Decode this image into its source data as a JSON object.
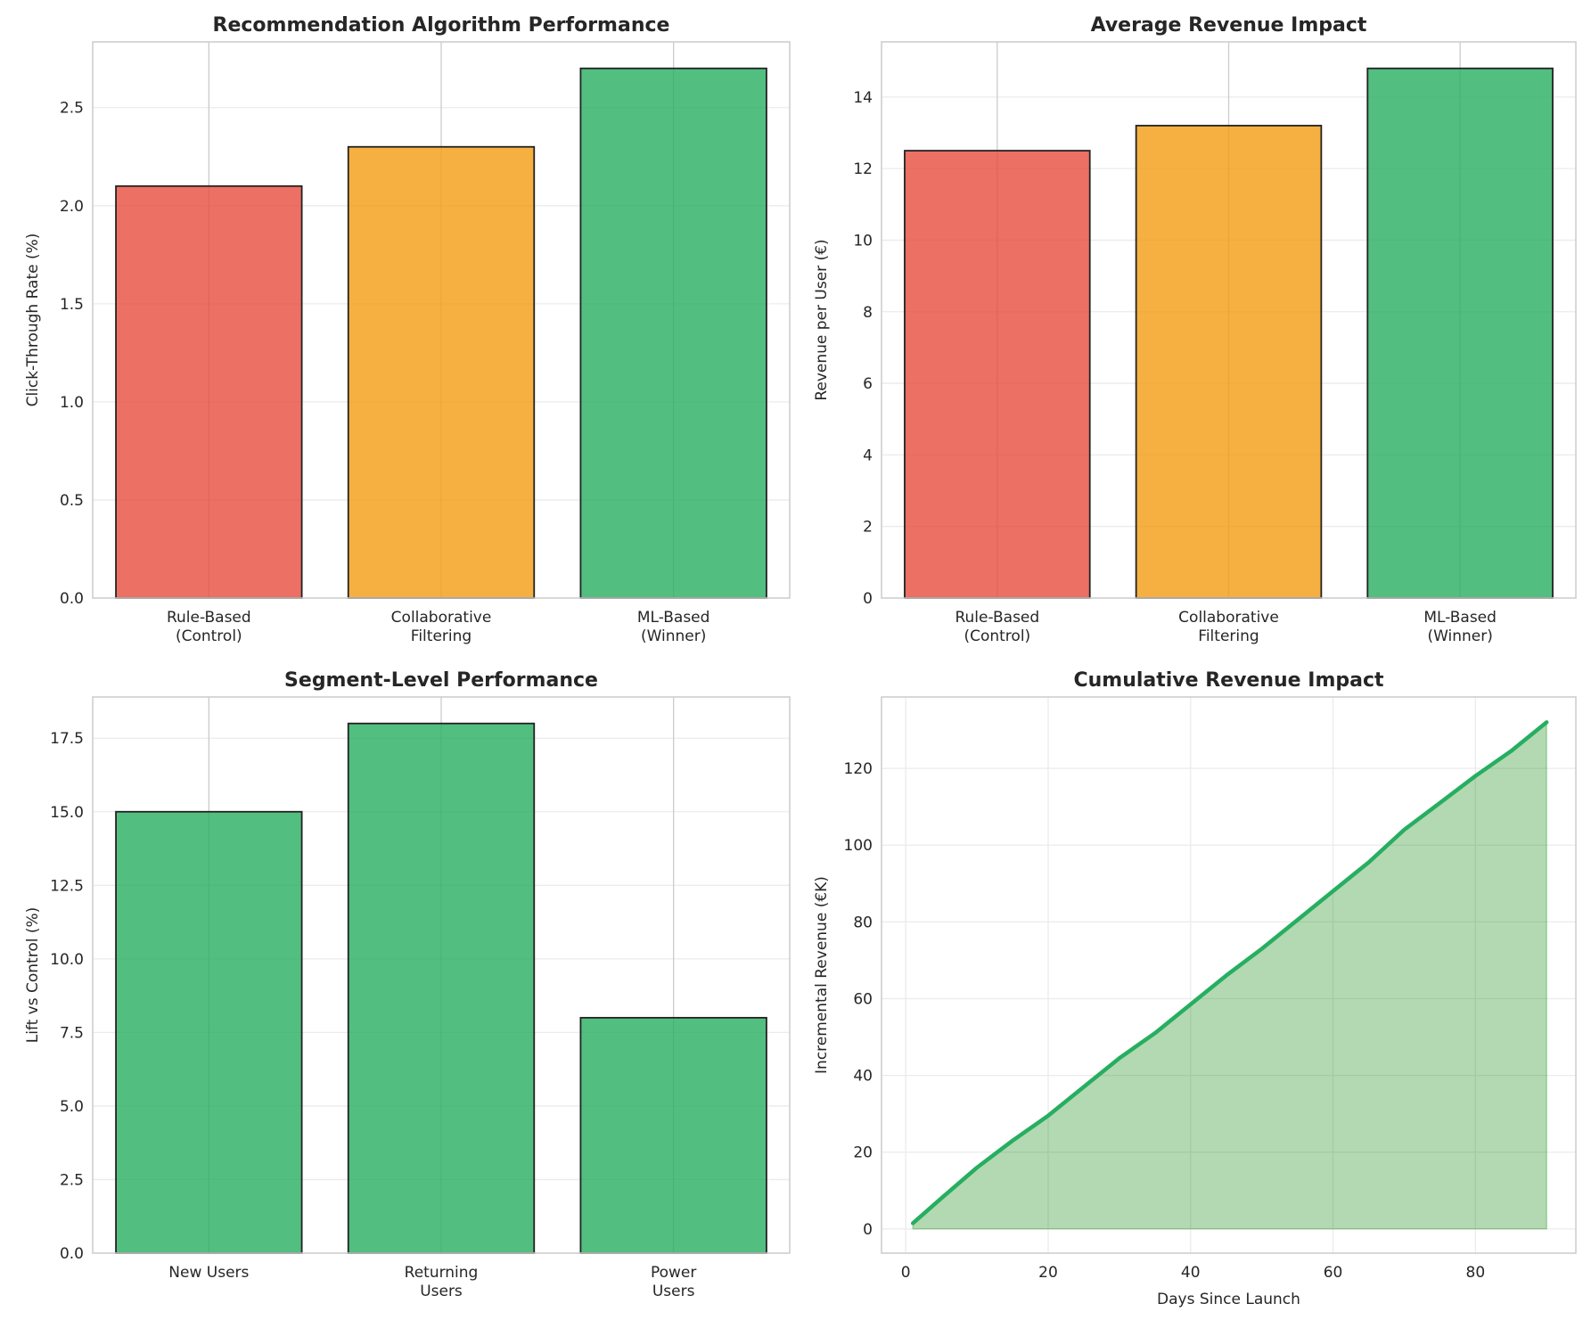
{
  "chart_data": [
    {
      "type": "bar",
      "title": "Recommendation Algorithm Performance",
      "xlabel": "",
      "ylabel": "Click-Through Rate (%)",
      "categories": [
        "Rule-Based\n(Control)",
        "Collaborative\nFiltering",
        "ML-Based\n(Winner)"
      ],
      "values": [
        2.1,
        2.3,
        2.7
      ],
      "colors": [
        "#e74c3c",
        "#f39c12",
        "#27ae60"
      ],
      "ylim": [
        0,
        2.835
      ],
      "yticks": [
        0.0,
        0.5,
        1.0,
        1.5,
        2.0,
        2.5
      ],
      "ytick_labels": [
        "0.0",
        "0.5",
        "1.0",
        "1.5",
        "2.0",
        "2.5"
      ],
      "grid": true
    },
    {
      "type": "bar",
      "title": "Average Revenue Impact",
      "xlabel": "",
      "ylabel": "Revenue per User (€)",
      "categories": [
        "Rule-Based\n(Control)",
        "Collaborative\nFiltering",
        "ML-Based\n(Winner)"
      ],
      "values": [
        12.5,
        13.2,
        14.8
      ],
      "colors": [
        "#e74c3c",
        "#f39c12",
        "#27ae60"
      ],
      "ylim": [
        0,
        15.54
      ],
      "yticks": [
        0,
        2,
        4,
        6,
        8,
        10,
        12,
        14
      ],
      "ytick_labels": [
        "0",
        "2",
        "4",
        "6",
        "8",
        "10",
        "12",
        "14"
      ],
      "grid": true
    },
    {
      "type": "bar",
      "title": "Segment-Level Performance",
      "xlabel": "",
      "ylabel": "Lift vs Control (%)",
      "categories": [
        "New Users",
        "Returning\nUsers",
        "Power\nUsers"
      ],
      "values": [
        15,
        18,
        8
      ],
      "colors": [
        "#27ae60",
        "#27ae60",
        "#27ae60"
      ],
      "ylim": [
        0,
        18.9
      ],
      "yticks": [
        0,
        2.5,
        5,
        7.5,
        10,
        12.5,
        15,
        17.5
      ],
      "ytick_labels": [
        "0.0",
        "2.5",
        "5.0",
        "7.5",
        "10.0",
        "12.5",
        "15.0",
        "17.5"
      ],
      "grid": true
    },
    {
      "type": "area",
      "title": "Cumulative Revenue Impact",
      "xlabel": "Days Since Launch",
      "ylabel": "Incremental Revenue (€K)",
      "x": [
        1,
        5,
        10,
        15,
        20,
        25,
        30,
        35,
        40,
        45,
        50,
        55,
        60,
        65,
        70,
        75,
        80,
        85,
        90
      ],
      "y": [
        1.5,
        8,
        16,
        23,
        29.5,
        37,
        44.5,
        51,
        58.5,
        66,
        73,
        80.5,
        88,
        95.5,
        104,
        111,
        118,
        124.5,
        132
      ],
      "line_color": "#27ae60",
      "fill_color": "#008000",
      "xlim": [
        -3.4,
        94.1
      ],
      "ylim": [
        -6.3,
        138.6
      ],
      "xticks": [
        0,
        20,
        40,
        60,
        80
      ],
      "xtick_labels": [
        "0",
        "20",
        "40",
        "60",
        "80"
      ],
      "yticks": [
        0,
        20,
        40,
        60,
        80,
        100,
        120
      ],
      "ytick_labels": [
        "0",
        "20",
        "40",
        "60",
        "80",
        "100",
        "120"
      ],
      "grid": true
    }
  ]
}
